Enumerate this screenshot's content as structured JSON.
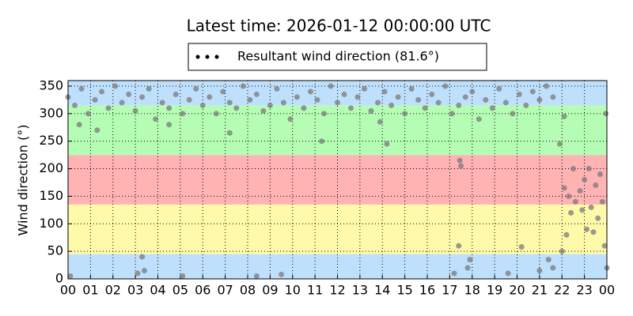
{
  "chart_data": {
    "type": "scatter",
    "title": "Latest time: 2026-01-12 00:00:00 UTC",
    "ylabel": "Wind direction (°)",
    "xlim": [
      0,
      24
    ],
    "ylim": [
      0,
      360
    ],
    "xticks": [
      {
        "value": 0,
        "label": "00"
      },
      {
        "value": 1,
        "label": "01"
      },
      {
        "value": 2,
        "label": "02"
      },
      {
        "value": 3,
        "label": "03"
      },
      {
        "value": 4,
        "label": "04"
      },
      {
        "value": 5,
        "label": "05"
      },
      {
        "value": 6,
        "label": "06"
      },
      {
        "value": 7,
        "label": "07"
      },
      {
        "value": 8,
        "label": "08"
      },
      {
        "value": 9,
        "label": "09"
      },
      {
        "value": 10,
        "label": "10"
      },
      {
        "value": 11,
        "label": "11"
      },
      {
        "value": 12,
        "label": "12"
      },
      {
        "value": 13,
        "label": "13"
      },
      {
        "value": 14,
        "label": "14"
      },
      {
        "value": 15,
        "label": "15"
      },
      {
        "value": 16,
        "label": "16"
      },
      {
        "value": 17,
        "label": "17"
      },
      {
        "value": 18,
        "label": "18"
      },
      {
        "value": 19,
        "label": "19"
      },
      {
        "value": 20,
        "label": "20"
      },
      {
        "value": 21,
        "label": "21"
      },
      {
        "value": 22,
        "label": "22"
      },
      {
        "value": 23,
        "label": "23"
      },
      {
        "value": 24,
        "label": "00"
      }
    ],
    "yticks": [
      0,
      50,
      100,
      150,
      200,
      250,
      300,
      350
    ],
    "grid": true,
    "legend": "top",
    "bands": [
      {
        "from": 0,
        "to": 45,
        "color": "#bfe0fd"
      },
      {
        "from": 45,
        "to": 135,
        "color": "#fff9aa"
      },
      {
        "from": 135,
        "to": 225,
        "color": "#ffb3b3"
      },
      {
        "from": 225,
        "to": 315,
        "color": "#b5fdb5"
      },
      {
        "from": 315,
        "to": 360,
        "color": "#bfe0fd"
      }
    ],
    "series": [
      {
        "name": "Resultant wind direction (81.6°)",
        "color": "#7a7a7a",
        "x": [
          0,
          0.3,
          0.6,
          0.9,
          1.2,
          1.5,
          1.8,
          2.1,
          2.4,
          2.7,
          3,
          3.3,
          3.6,
          3.9,
          4.2,
          4.5,
          4.8,
          5.1,
          5.4,
          5.7,
          6,
          6.3,
          6.6,
          6.9,
          7.2,
          7.5,
          7.8,
          8.1,
          8.4,
          8.7,
          9,
          9.3,
          9.6,
          9.9,
          10.2,
          10.5,
          10.8,
          11.1,
          11.4,
          11.7,
          12,
          12.3,
          12.6,
          12.9,
          13.2,
          13.5,
          13.8,
          14.1,
          14.4,
          14.7,
          15,
          15.3,
          15.6,
          15.9,
          16.2,
          16.5,
          16.8,
          17.1,
          17.4,
          17.7,
          18,
          18.3,
          18.6,
          18.9,
          19.2,
          19.5,
          19.8,
          20.1,
          20.4,
          20.7,
          21,
          21.3,
          21.6,
          0.1,
          3.1,
          3.3,
          3.4,
          5.1,
          8.4,
          9.5,
          17.2,
          17.4,
          17.8,
          17.9,
          19.6,
          20.2,
          21,
          21.4,
          21.6,
          17.5,
          17.45,
          14.2,
          11.3,
          21.9,
          22.1,
          22.1,
          22.3,
          22.4,
          22.5,
          22.6,
          22.8,
          23,
          23.1,
          23.3,
          23.5,
          23.6,
          23.8,
          23.9,
          22.2,
          22.9,
          23.2,
          23.4,
          23.7,
          23.95,
          22,
          24,
          4.5,
          7.2,
          0.5,
          1.3,
          13.9
        ],
        "values": [
          330,
          315,
          345,
          300,
          325,
          340,
          310,
          350,
          320,
          335,
          305,
          330,
          345,
          290,
          320,
          310,
          335,
          300,
          325,
          345,
          315,
          330,
          300,
          340,
          320,
          310,
          350,
          325,
          335,
          305,
          315,
          345,
          320,
          290,
          330,
          310,
          340,
          325,
          300,
          350,
          320,
          335,
          310,
          330,
          345,
          305,
          320,
          340,
          315,
          330,
          300,
          345,
          325,
          310,
          335,
          320,
          350,
          300,
          315,
          330,
          340,
          290,
          325,
          310,
          345,
          320,
          300,
          335,
          315,
          340,
          325,
          350,
          330,
          5,
          10,
          40,
          15,
          5,
          5,
          8,
          10,
          60,
          20,
          35,
          10,
          58,
          15,
          35,
          20,
          205,
          215,
          245,
          250,
          245,
          295,
          165,
          150,
          120,
          200,
          140,
          160,
          180,
          90,
          130,
          170,
          110,
          140,
          60,
          80,
          125,
          200,
          85,
          190,
          300,
          50,
          20,
          280,
          265,
          280,
          270,
          285
        ]
      }
    ]
  }
}
